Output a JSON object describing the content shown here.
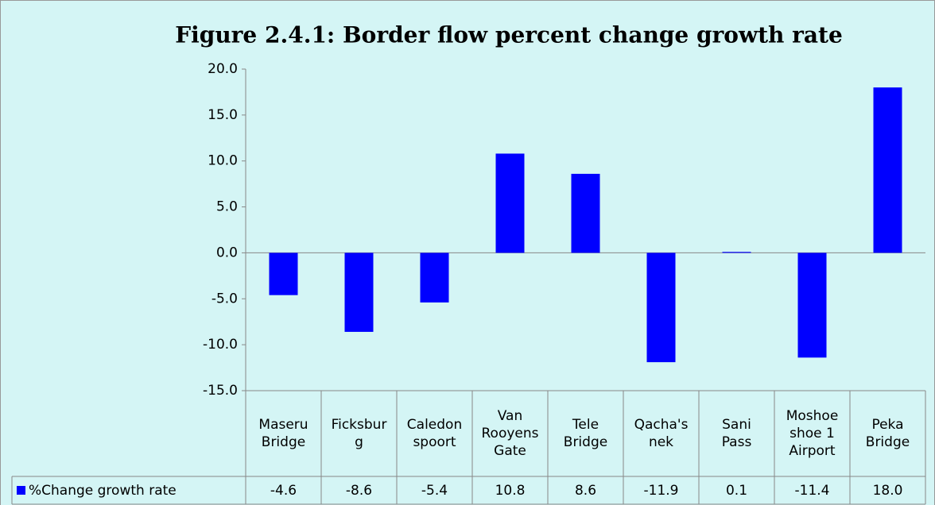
{
  "chart_data": {
    "type": "bar",
    "title": "Figure 2.4.1: Border flow percent change growth rate",
    "categories": [
      "Maseru Bridge",
      "Ficksburg",
      "Caledonspoort",
      "Van Rooyens Gate",
      "Tele Bridge",
      "Qacha's nek",
      "Sani Pass",
      "Moshoeshoe 1 Airport",
      "Peka Bridge"
    ],
    "series": [
      {
        "name": "%Change growth rate",
        "color": "#0000ff",
        "values": [
          -4.6,
          -8.6,
          -5.4,
          10.8,
          8.6,
          -11.9,
          0.1,
          -11.4,
          18.0
        ],
        "value_labels": [
          "-4.6",
          "-8.6",
          "-5.4",
          "10.8",
          "8.6",
          "-11.9",
          "0.1",
          "-11.4",
          "18.0"
        ]
      }
    ],
    "ylim": [
      -15,
      20
    ],
    "yticks": [
      {
        "value": -15,
        "label": "-15.0"
      },
      {
        "value": -10,
        "label": "-10.0"
      },
      {
        "value": -5,
        "label": "-5.0"
      },
      {
        "value": 0,
        "label": "0.0"
      },
      {
        "value": 5,
        "label": "5.0"
      },
      {
        "value": 10,
        "label": "10.0"
      },
      {
        "value": 15,
        "label": "15.0"
      },
      {
        "value": 20,
        "label": "20.0"
      }
    ],
    "grid": false
  }
}
